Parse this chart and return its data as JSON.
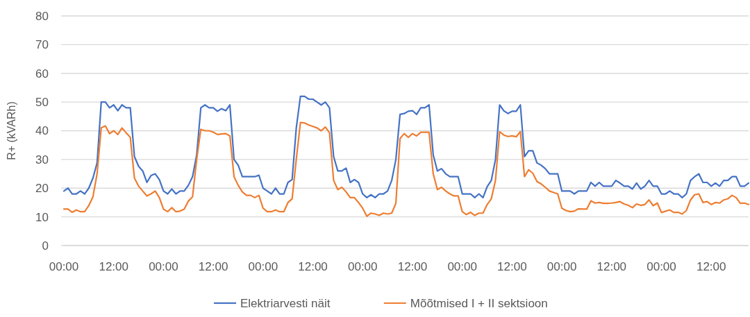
{
  "chart_data": {
    "type": "line",
    "ylabel": "R+ (kVARh)",
    "categories": [
      "00:00",
      null,
      null,
      null,
      null,
      null,
      null,
      null,
      null,
      null,
      null,
      null,
      "12:00",
      null,
      null,
      null,
      null,
      null,
      null,
      null,
      null,
      null,
      null,
      null,
      "00:00",
      null,
      null,
      null,
      null,
      null,
      null,
      null,
      null,
      null,
      null,
      null,
      "12:00",
      null,
      null,
      null,
      null,
      null,
      null,
      null,
      null,
      null,
      null,
      null,
      "00:00",
      null,
      null,
      null,
      null,
      null,
      null,
      null,
      null,
      null,
      null,
      null,
      "12:00",
      null,
      null,
      null,
      null,
      null,
      null,
      null,
      null,
      null,
      null,
      null,
      "00:00",
      null,
      null,
      null,
      null,
      null,
      null,
      null,
      null,
      null,
      null,
      null,
      "12:00",
      null,
      null,
      null,
      null,
      null,
      null,
      null,
      null,
      null,
      null,
      null,
      "00:00",
      null,
      null,
      null,
      null,
      null,
      null,
      null,
      null,
      null,
      null,
      null,
      "12:00",
      null,
      null,
      null,
      null,
      null,
      null,
      null,
      null,
      null,
      null,
      null,
      "00:00",
      null,
      null,
      null,
      null,
      null,
      null,
      null,
      null,
      null,
      null,
      null,
      "12:00",
      null,
      null,
      null,
      null,
      null,
      null,
      null,
      null,
      null,
      null,
      null,
      "00:00",
      null,
      null,
      null,
      null,
      null,
      null,
      null,
      null,
      null,
      null,
      null,
      "12:00",
      null,
      null,
      null,
      null,
      null,
      null,
      null,
      null,
      null
    ],
    "series": [
      {
        "name": "Elektriarvesti näit",
        "color": "#4472c4",
        "values": [
          19,
          20,
          18,
          18,
          19,
          18,
          20,
          23.5,
          28.8,
          50,
          50,
          48,
          49,
          47,
          49,
          48,
          48,
          31,
          27.6,
          26,
          22,
          24.4,
          25,
          23,
          19,
          18,
          19.7,
          18,
          19,
          19,
          21,
          24,
          31.6,
          48,
          49,
          48,
          48,
          46.8,
          47.7,
          47,
          49,
          30,
          28,
          24,
          24,
          24,
          24,
          24.5,
          20,
          19,
          18,
          20,
          18,
          18,
          22,
          23,
          41,
          52,
          52,
          51,
          51,
          50,
          49,
          50,
          48,
          31,
          26,
          26,
          27,
          22,
          23,
          22,
          18,
          16.7,
          17.7,
          16.7,
          18,
          18,
          19,
          22.7,
          30,
          45.7,
          46,
          46.8,
          47,
          45.7,
          48,
          48,
          49,
          31.6,
          26,
          26.8,
          25,
          24,
          24,
          24,
          18,
          18,
          18,
          16.7,
          18,
          16.7,
          20.5,
          22.7,
          30,
          49,
          47,
          46,
          46.8,
          46.8,
          49,
          31,
          33,
          33,
          28.8,
          28,
          26.8,
          25,
          25,
          25,
          19,
          19,
          19,
          18,
          19,
          19,
          19,
          22,
          20.7,
          22,
          20.7,
          20.7,
          20.7,
          22.7,
          21.8,
          20.7,
          20.7,
          19.7,
          21.8,
          19.7,
          20.7,
          22.7,
          20.7,
          20.7,
          18,
          18,
          19,
          18,
          18,
          16.7,
          18,
          22.7,
          24,
          25,
          22,
          22,
          20.7,
          21.8,
          20.7,
          22.7,
          22.7,
          24,
          24,
          20.7,
          20.7,
          21.8
        ]
      },
      {
        "name": "Mõõtmised I + II sektsioon",
        "color": "#ed7d31",
        "values": [
          12.7,
          12.7,
          11.6,
          12.4,
          11.8,
          11.8,
          13.9,
          17,
          25,
          41,
          41.7,
          39,
          40,
          38.7,
          41,
          39.3,
          37.7,
          23.5,
          20.7,
          19,
          17.3,
          18,
          19,
          16.7,
          12.7,
          11.8,
          13.2,
          11.8,
          12,
          12.7,
          15.5,
          17,
          30,
          40.5,
          40,
          40,
          39.5,
          38.7,
          38.9,
          39,
          38.2,
          24,
          21,
          18.7,
          17.5,
          17.5,
          16.7,
          17.5,
          13,
          11.8,
          11.8,
          12.4,
          11.8,
          11.8,
          15,
          16.3,
          30,
          42.9,
          42.7,
          42,
          41.5,
          41,
          40,
          41.3,
          39.3,
          22.7,
          19.5,
          20.3,
          18.7,
          16.7,
          16.7,
          15,
          13,
          10.2,
          11.3,
          11,
          10.5,
          11.3,
          11,
          11.3,
          14.7,
          37.3,
          39,
          37.7,
          39,
          38.2,
          39.5,
          39.5,
          39.5,
          25,
          19.5,
          20.3,
          19,
          18,
          17.3,
          17.3,
          11.8,
          10.8,
          11.6,
          10.5,
          11.3,
          11.3,
          14.3,
          16.3,
          22.7,
          39.7,
          38.5,
          38,
          38.2,
          37.9,
          39.7,
          24,
          26.4,
          25.2,
          22.3,
          21.5,
          20.3,
          19,
          18.5,
          18,
          13,
          12.2,
          11.8,
          12,
          12.8,
          12.7,
          12.7,
          15.6,
          14.8,
          15,
          14.7,
          14.7,
          14.8,
          15,
          15.3,
          14.5,
          14,
          13.2,
          14.5,
          14,
          14.3,
          15.9,
          13.9,
          14.8,
          11.5,
          12,
          12.4,
          11.5,
          11.6,
          11,
          12.2,
          15.9,
          17.7,
          18,
          15,
          15.3,
          14.3,
          15,
          14.8,
          15.9,
          16.3,
          17.5,
          16.7,
          14.7,
          14.8,
          14.3
        ]
      }
    ],
    "ylim": [
      0,
      80
    ],
    "yticks": [
      0,
      10,
      20,
      30,
      40,
      50,
      60,
      70,
      80
    ],
    "grid": "y",
    "legend": "bottom",
    "marker": "none",
    "line_style": "solid"
  }
}
